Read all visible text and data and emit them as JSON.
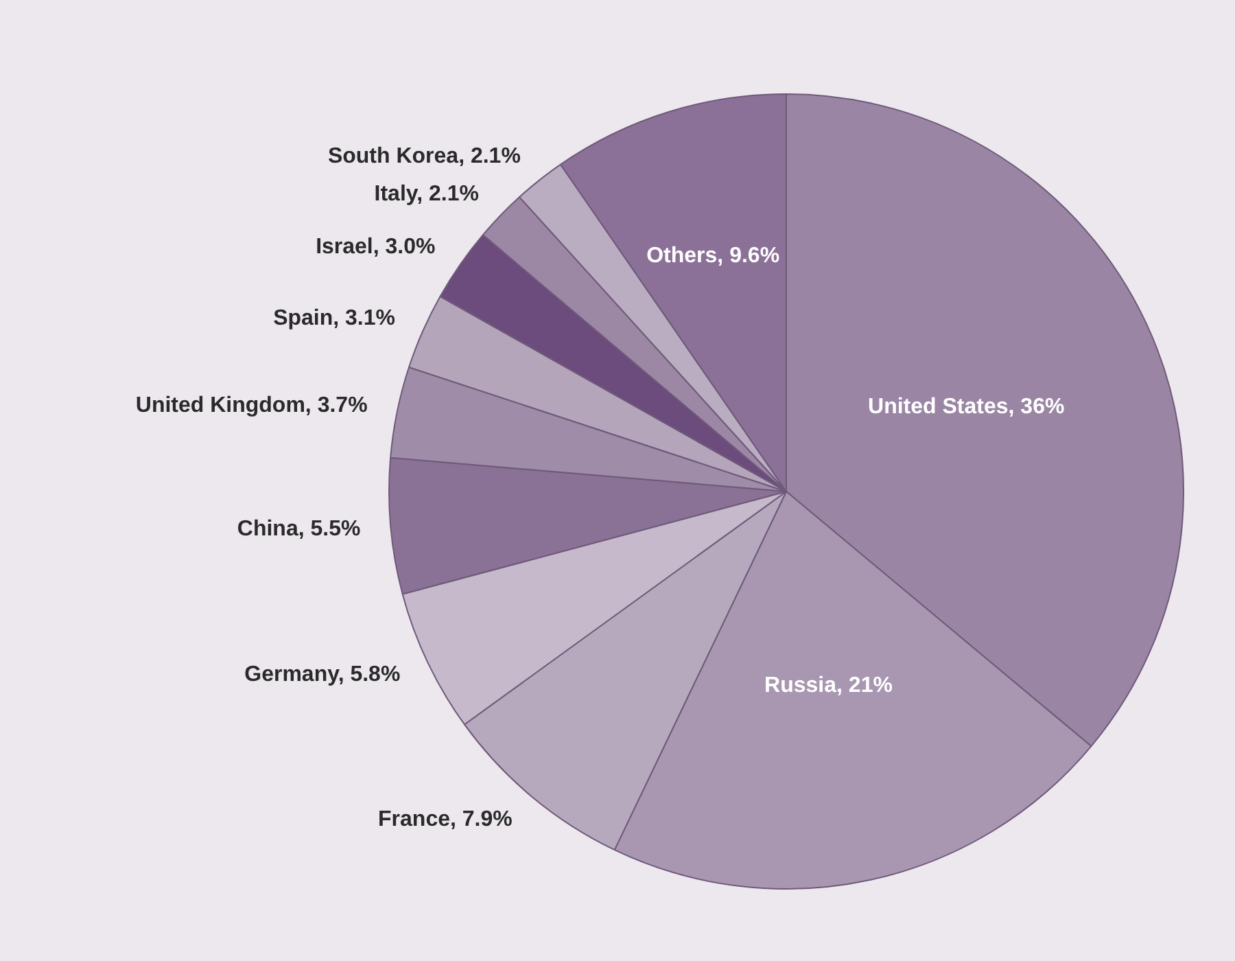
{
  "chart_data": {
    "type": "pie",
    "categories": [
      "United States",
      "Russia",
      "France",
      "Germany",
      "China",
      "United Kingdom",
      "Spain",
      "Israel",
      "Italy",
      "South Korea",
      "Others"
    ],
    "values": [
      36,
      21,
      7.9,
      5.8,
      5.5,
      3.7,
      3.1,
      3.0,
      2.1,
      2.1,
      9.6
    ],
    "value_labels": [
      "36%",
      "21%",
      "7.9%",
      "5.8%",
      "5.5%",
      "3.7%",
      "3.1%",
      "3.0%",
      "2.1%",
      "2.1%",
      "9.6%"
    ],
    "colors": [
      "#9a86a4",
      "#a997b1",
      "#b6a8bd",
      "#c5b9cb",
      "#8a7196",
      "#9f8ca8",
      "#b4a5bb",
      "#6c4c7c",
      "#9c88a4",
      "#baacc1",
      "#8b7197"
    ],
    "legend": false
  }
}
